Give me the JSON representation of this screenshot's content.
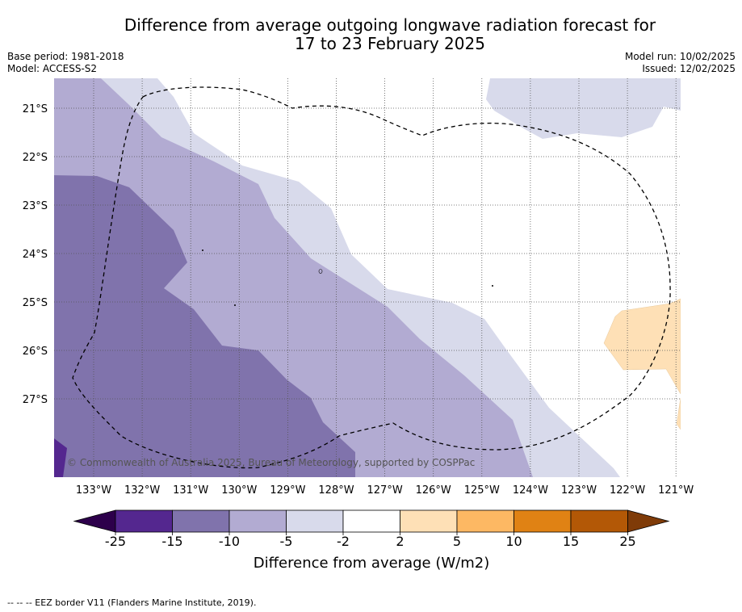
{
  "header": {
    "title_line1": "Difference from average outgoing longwave radiation forecast for",
    "title_line2": "17 to 23 February 2025",
    "base_period": "Base period: 1981-2018",
    "model": "Model: ACCESS-S2",
    "model_run": "Model run: 10/02/2025",
    "issued": "Issued: 12/02/2025"
  },
  "map": {
    "lat_labels": [
      "21°S",
      "22°S",
      "23°S",
      "24°S",
      "25°S",
      "26°S",
      "27°S"
    ],
    "lon_labels": [
      "133°W",
      "132°W",
      "131°W",
      "130°W",
      "129°W",
      "128°W",
      "127°W",
      "126°W",
      "125°W",
      "124°W",
      "123°W",
      "122°W",
      "121°W"
    ],
    "copyright": "© Commonwealth of Australia 2025, Bureau of Meteorology, supported by COSPPac",
    "fill_colors": {
      "-25_-15": "#54278f",
      "-15_-10": "#8073ac",
      "-10_-5": "#b2abd2",
      "-5_-2": "#d8daeb",
      "-2_2": "#ffffff",
      "2_5": "#fee0b6"
    }
  },
  "colorbar": {
    "label": "Difference from average (W/m2)",
    "ticks": [
      "-25",
      "-15",
      "-10",
      "-5",
      "-2",
      "2",
      "5",
      "10",
      "15",
      "25"
    ],
    "colors": [
      "#54278f",
      "#8073ac",
      "#b2abd2",
      "#d8daeb",
      "#ffffff",
      "#fee0b6",
      "#fdb863",
      "#e08214",
      "#b35806"
    ],
    "extend_low_color": "#2d004b",
    "extend_high_color": "#7f3b08"
  },
  "footer": {
    "legend_line": "--  --  -- EEZ border V11 (Flanders Marine Institute, 2019)."
  }
}
